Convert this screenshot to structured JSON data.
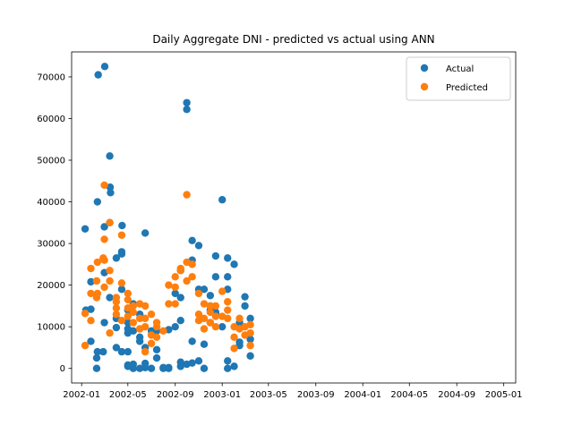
{
  "chart_data": {
    "type": "scatter",
    "title": "Daily Aggregate DNI - predicted vs actual using ANN",
    "xlabel": "",
    "ylabel": "",
    "x_axis": {
      "type": "date",
      "range": [
        "2001-12-06",
        "2005-02-01"
      ],
      "ticks": [
        {
          "value": "2002-01-01",
          "label": "2002-01"
        },
        {
          "value": "2002-05-01",
          "label": "2002-05"
        },
        {
          "value": "2002-09-01",
          "label": "2002-09"
        },
        {
          "value": "2003-01-01",
          "label": "2003-01"
        },
        {
          "value": "2003-05-01",
          "label": "2003-05"
        },
        {
          "value": "2003-09-01",
          "label": "2003-09"
        },
        {
          "value": "2004-01-01",
          "label": "2004-01"
        },
        {
          "value": "2004-05-01",
          "label": "2004-05"
        },
        {
          "value": "2004-09-01",
          "label": "2004-09"
        },
        {
          "value": "2005-01-01",
          "label": "2005-01"
        }
      ]
    },
    "y_axis": {
      "range": [
        -3500,
        76000
      ],
      "ticks": [
        {
          "value": 0,
          "label": "0"
        },
        {
          "value": 10000,
          "label": "10000"
        },
        {
          "value": 20000,
          "label": "20000"
        },
        {
          "value": 30000,
          "label": "30000"
        },
        {
          "value": 40000,
          "label": "40000"
        },
        {
          "value": 50000,
          "label": "50000"
        },
        {
          "value": 60000,
          "label": "60000"
        },
        {
          "value": 70000,
          "label": "70000"
        }
      ]
    },
    "grid": false,
    "legend": {
      "position": "upper right"
    },
    "series": [
      {
        "name": "Actual",
        "color": "#1f77b4",
        "points": [
          [
            "2002-01-10",
            33500
          ],
          [
            "2002-01-12",
            14000
          ],
          [
            "2002-01-25",
            6500
          ],
          [
            "2002-01-25",
            14200
          ],
          [
            "2002-01-25",
            20800
          ],
          [
            "2002-02-09",
            2500
          ],
          [
            "2002-02-09",
            0
          ],
          [
            "2002-02-11",
            4000
          ],
          [
            "2002-02-11",
            40000
          ],
          [
            "2002-02-13",
            70500
          ],
          [
            "2002-02-26",
            4000
          ],
          [
            "2002-03-01",
            34000
          ],
          [
            "2002-03-01",
            23000
          ],
          [
            "2002-03-01",
            11000
          ],
          [
            "2002-03-02",
            72500
          ],
          [
            "2002-03-15",
            51000
          ],
          [
            "2002-03-16",
            43500
          ],
          [
            "2002-03-17",
            42200
          ],
          [
            "2002-03-15",
            35000
          ],
          [
            "2002-03-15",
            17000
          ],
          [
            "2002-04-01",
            5000
          ],
          [
            "2002-04-01",
            9800
          ],
          [
            "2002-04-01",
            12000
          ],
          [
            "2002-04-01",
            26500
          ],
          [
            "2002-04-15",
            4000
          ],
          [
            "2002-04-15",
            19000
          ],
          [
            "2002-04-15",
            27500
          ],
          [
            "2002-04-15",
            28000
          ],
          [
            "2002-04-16",
            34300
          ],
          [
            "2002-05-01",
            500
          ],
          [
            "2002-05-01",
            800
          ],
          [
            "2002-05-01",
            4000
          ],
          [
            "2002-05-01",
            8500
          ],
          [
            "2002-05-01",
            9500
          ],
          [
            "2002-05-01",
            11000
          ],
          [
            "2002-05-01",
            14000
          ],
          [
            "2002-05-15",
            0
          ],
          [
            "2002-05-15",
            1000
          ],
          [
            "2002-05-15",
            9000
          ],
          [
            "2002-05-15",
            15500
          ],
          [
            "2002-06-01",
            0
          ],
          [
            "2002-06-01",
            6500
          ],
          [
            "2002-06-01",
            7500
          ],
          [
            "2002-06-01",
            13000
          ],
          [
            "2002-06-15",
            200
          ],
          [
            "2002-06-15",
            1200
          ],
          [
            "2002-06-15",
            5000
          ],
          [
            "2002-06-15",
            32500
          ],
          [
            "2002-07-01",
            0
          ],
          [
            "2002-07-01",
            9000
          ],
          [
            "2002-07-15",
            2500
          ],
          [
            "2002-07-15",
            4500
          ],
          [
            "2002-07-15",
            9000
          ],
          [
            "2002-08-01",
            0
          ],
          [
            "2002-08-01",
            200
          ],
          [
            "2002-08-15",
            200
          ],
          [
            "2002-08-15",
            0
          ],
          [
            "2002-08-15",
            9300
          ],
          [
            "2002-09-01",
            10000
          ],
          [
            "2002-09-01",
            18000
          ],
          [
            "2002-09-15",
            1500
          ],
          [
            "2002-09-15",
            500
          ],
          [
            "2002-09-15",
            11500
          ],
          [
            "2002-09-15",
            17000
          ],
          [
            "2002-09-15",
            23500
          ],
          [
            "2002-10-01",
            63800
          ],
          [
            "2002-10-01",
            62200
          ],
          [
            "2002-10-01",
            1000
          ],
          [
            "2002-10-15",
            1300
          ],
          [
            "2002-10-15",
            6500
          ],
          [
            "2002-10-15",
            26000
          ],
          [
            "2002-10-15",
            30700
          ],
          [
            "2002-11-01",
            29500
          ],
          [
            "2002-11-01",
            19000
          ],
          [
            "2002-11-01",
            1800
          ],
          [
            "2002-11-15",
            0
          ],
          [
            "2002-11-15",
            5800
          ],
          [
            "2002-11-15",
            19000
          ],
          [
            "2002-12-01",
            11000
          ],
          [
            "2002-12-01",
            14000
          ],
          [
            "2002-12-01",
            15000
          ],
          [
            "2002-12-01",
            17500
          ],
          [
            "2002-12-15",
            13000
          ],
          [
            "2002-12-15",
            13500
          ],
          [
            "2002-12-15",
            22000
          ],
          [
            "2002-12-15",
            27000
          ],
          [
            "2003-01-01",
            40500
          ],
          [
            "2003-01-01",
            10000
          ],
          [
            "2003-01-15",
            0
          ],
          [
            "2003-01-15",
            1800
          ],
          [
            "2003-01-15",
            19000
          ],
          [
            "2003-01-15",
            22000
          ],
          [
            "2003-01-15",
            26500
          ],
          [
            "2003-02-01",
            500
          ],
          [
            "2003-02-01",
            25000
          ],
          [
            "2003-02-15",
            5500
          ],
          [
            "2003-02-15",
            6300
          ],
          [
            "2003-02-15",
            11000
          ],
          [
            "2003-03-01",
            17200
          ],
          [
            "2003-03-01",
            15000
          ],
          [
            "2003-03-15",
            3000
          ],
          [
            "2003-03-15",
            7000
          ],
          [
            "2003-03-15",
            12000
          ]
        ]
      },
      {
        "name": "Predicted",
        "color": "#ff7f0e",
        "points": [
          [
            "2002-01-10",
            5500
          ],
          [
            "2002-01-10",
            13200
          ],
          [
            "2002-01-25",
            24000
          ],
          [
            "2002-01-25",
            18000
          ],
          [
            "2002-01-25",
            11500
          ],
          [
            "2002-02-09",
            21000
          ],
          [
            "2002-02-09",
            17000
          ],
          [
            "2002-02-11",
            25500
          ],
          [
            "2002-02-11",
            18000
          ],
          [
            "2002-02-26",
            26500
          ],
          [
            "2002-03-01",
            44000
          ],
          [
            "2002-03-01",
            31000
          ],
          [
            "2002-03-01",
            26000
          ],
          [
            "2002-03-01",
            19500
          ],
          [
            "2002-03-15",
            8500
          ],
          [
            "2002-03-15",
            21000
          ],
          [
            "2002-03-15",
            23500
          ],
          [
            "2002-03-15",
            35000
          ],
          [
            "2002-04-01",
            13000
          ],
          [
            "2002-04-01",
            14500
          ],
          [
            "2002-04-01",
            16000
          ],
          [
            "2002-04-01",
            17000
          ],
          [
            "2002-04-15",
            20500
          ],
          [
            "2002-04-15",
            32000
          ],
          [
            "2002-04-15",
            11500
          ],
          [
            "2002-05-01",
            18000
          ],
          [
            "2002-05-01",
            16500
          ],
          [
            "2002-05-01",
            14500
          ],
          [
            "2002-05-01",
            12500
          ],
          [
            "2002-05-15",
            11000
          ],
          [
            "2002-05-15",
            13500
          ],
          [
            "2002-05-15",
            15000
          ],
          [
            "2002-06-01",
            9500
          ],
          [
            "2002-06-01",
            12000
          ],
          [
            "2002-06-01",
            15500
          ],
          [
            "2002-06-15",
            4000
          ],
          [
            "2002-06-15",
            10000
          ],
          [
            "2002-06-15",
            12000
          ],
          [
            "2002-06-15",
            15000
          ],
          [
            "2002-07-01",
            6000
          ],
          [
            "2002-07-01",
            8000
          ],
          [
            "2002-07-01",
            13000
          ],
          [
            "2002-07-15",
            7500
          ],
          [
            "2002-07-15",
            10000
          ],
          [
            "2002-07-15",
            11000
          ],
          [
            "2002-08-01",
            9000
          ],
          [
            "2002-08-15",
            20000
          ],
          [
            "2002-08-15",
            15500
          ],
          [
            "2002-09-01",
            15500
          ],
          [
            "2002-09-01",
            19500
          ],
          [
            "2002-09-01",
            22000
          ],
          [
            "2002-09-15",
            23500
          ],
          [
            "2002-09-15",
            24000
          ],
          [
            "2002-10-01",
            41700
          ],
          [
            "2002-10-01",
            25500
          ],
          [
            "2002-10-01",
            21000
          ],
          [
            "2002-10-15",
            22000
          ],
          [
            "2002-10-15",
            25000
          ],
          [
            "2002-11-01",
            13000
          ],
          [
            "2002-11-01",
            18000
          ],
          [
            "2002-11-01",
            11500
          ],
          [
            "2002-11-15",
            9500
          ],
          [
            "2002-11-15",
            12000
          ],
          [
            "2002-11-15",
            15500
          ],
          [
            "2002-12-01",
            11000
          ],
          [
            "2002-12-01",
            13500
          ],
          [
            "2002-12-01",
            15000
          ],
          [
            "2002-12-15",
            10000
          ],
          [
            "2002-12-15",
            12500
          ],
          [
            "2002-12-15",
            15000
          ],
          [
            "2003-01-01",
            12500
          ],
          [
            "2003-01-01",
            18500
          ],
          [
            "2003-01-15",
            12000
          ],
          [
            "2003-01-15",
            14000
          ],
          [
            "2003-01-15",
            16000
          ],
          [
            "2003-02-01",
            4800
          ],
          [
            "2003-02-01",
            7500
          ],
          [
            "2003-02-01",
            10000
          ],
          [
            "2003-02-15",
            9500
          ],
          [
            "2003-02-15",
            12000
          ],
          [
            "2003-03-01",
            8000
          ],
          [
            "2003-03-01",
            10000
          ],
          [
            "2003-03-15",
            5500
          ],
          [
            "2003-03-15",
            8500
          ],
          [
            "2003-03-15",
            10500
          ]
        ]
      }
    ]
  }
}
